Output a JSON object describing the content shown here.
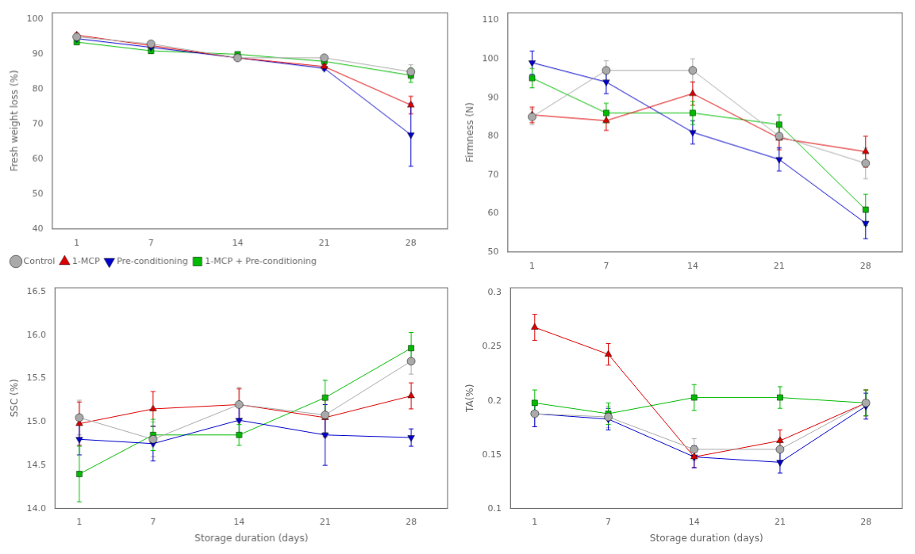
{
  "chart_data": [
    {
      "type": "line",
      "ylabel": "Fresh weight loss (%)",
      "x": [
        1,
        7,
        14,
        21,
        28
      ],
      "xlim": [
        -1,
        31
      ],
      "xticks": [
        1,
        7,
        14,
        21,
        28
      ],
      "ylim": [
        40,
        102
      ],
      "yticks": [
        40,
        50,
        60,
        70,
        80,
        90,
        100
      ],
      "grid": false,
      "legend": "lower left",
      "series": [
        {
          "name": "Control",
          "color": "#aaaaaa",
          "marker": "circle",
          "values": [
            95.0,
            93.0,
            89.0,
            89.0,
            85.0
          ],
          "yerr": [
            0.5,
            0.8,
            0.5,
            0.5,
            2.0
          ]
        },
        {
          "name": "1-MCP",
          "color": "#dd0000",
          "marker": "triangle-up",
          "values": [
            95.5,
            92.5,
            89.0,
            86.5,
            75.5
          ],
          "yerr": [
            0.5,
            0.8,
            0.5,
            0.5,
            2.5
          ]
        },
        {
          "name": "Pre-conditioning",
          "color": "#0000cc",
          "marker": "triangle-down",
          "values": [
            94.5,
            92.0,
            89.0,
            86.0,
            67.0
          ],
          "yerr": [
            0.5,
            0.8,
            0.5,
            0.5,
            9.0
          ]
        },
        {
          "name": "1-MCP + Pre-conditioning",
          "color": "#00bb00",
          "marker": "square",
          "values": [
            93.5,
            91.0,
            90.0,
            88.0,
            84.0
          ],
          "yerr": [
            0.5,
            0.8,
            0.5,
            0.5,
            2.0
          ]
        }
      ]
    },
    {
      "type": "line",
      "ylabel": "Firmness (N)",
      "x": [
        1,
        7,
        14,
        21,
        28
      ],
      "xlim": [
        -1,
        31
      ],
      "xticks": [
        1,
        7,
        14,
        21,
        28
      ],
      "ylim": [
        50,
        112
      ],
      "yticks": [
        50,
        60,
        70,
        80,
        90,
        100,
        110
      ],
      "grid": false,
      "series": [
        {
          "name": "Control",
          "color": "#aaaaaa",
          "marker": "circle",
          "values": [
            85.0,
            97.0,
            97.0,
            80.0,
            73.0
          ],
          "yerr": [
            2.0,
            2.5,
            3.0,
            3.0,
            4.0
          ]
        },
        {
          "name": "1-MCP",
          "color": "#dd0000",
          "marker": "triangle-up",
          "values": [
            85.5,
            84.0,
            91.0,
            79.5,
            76.0
          ],
          "yerr": [
            2.0,
            2.5,
            3.0,
            3.0,
            4.0
          ]
        },
        {
          "name": "Pre-conditioning",
          "color": "#0000cc",
          "marker": "triangle-down",
          "values": [
            99.0,
            94.0,
            81.0,
            74.0,
            57.5
          ],
          "yerr": [
            3.0,
            3.0,
            3.0,
            3.0,
            4.0
          ]
        },
        {
          "name": "1-MCP + Pre-conditioning",
          "color": "#00bb00",
          "marker": "square",
          "values": [
            95.0,
            86.0,
            86.0,
            83.0,
            61.0
          ],
          "yerr": [
            2.5,
            2.5,
            3.0,
            2.5,
            4.0
          ]
        }
      ]
    },
    {
      "type": "line",
      "ylabel": "SSC (%)",
      "xlabel": "Storage duration (days)",
      "x": [
        1,
        7,
        14,
        21,
        28
      ],
      "xlim": [
        -1,
        31
      ],
      "xticks": [
        1,
        7,
        14,
        21,
        28
      ],
      "ylim": [
        14.0,
        16.55
      ],
      "yticks": [
        {
          "value": 14.0,
          "label": "14.0"
        },
        14.5,
        {
          "value": 15.0,
          "label": "15.0"
        },
        15.5,
        {
          "value": 16.0,
          "label": "16.0"
        },
        16.5
      ],
      "grid": false,
      "series": [
        {
          "name": "Control",
          "color": "#aaaaaa",
          "marker": "circle",
          "values": [
            15.05,
            14.8,
            15.2,
            15.08,
            15.7
          ],
          "yerr": [
            0.2,
            0.2,
            0.2,
            0.2,
            0.15
          ]
        },
        {
          "name": "1-MCP",
          "color": "#dd0000",
          "marker": "triangle-up",
          "values": [
            14.98,
            15.15,
            15.2,
            15.05,
            15.3
          ],
          "yerr": [
            0.25,
            0.2,
            0.18,
            0.22,
            0.15
          ]
        },
        {
          "name": "Pre-conditioning",
          "color": "#0000cc",
          "marker": "triangle-down",
          "values": [
            14.8,
            14.75,
            15.02,
            14.85,
            14.82
          ],
          "yerr": [
            0.18,
            0.2,
            0.18,
            0.35,
            0.1
          ]
        },
        {
          "name": "1-MCP + Pre-conditioning",
          "color": "#00bb00",
          "marker": "square",
          "values": [
            14.4,
            14.85,
            14.85,
            15.28,
            15.85
          ],
          "yerr": [
            0.32,
            0.18,
            0.12,
            0.2,
            0.18
          ]
        }
      ]
    },
    {
      "type": "line",
      "ylabel": "TA(%)",
      "xlabel": "Storage duration (days)",
      "x": [
        1,
        7,
        14,
        21,
        28
      ],
      "xlim": [
        -1,
        31
      ],
      "xticks": [
        1,
        7,
        14,
        21,
        28
      ],
      "ylim": [
        0.1,
        0.305
      ],
      "yticks": [
        0.1,
        0.15,
        0.2,
        0.25,
        0.3
      ],
      "grid": false,
      "series": [
        {
          "name": "Control",
          "color": "#aaaaaa",
          "marker": "circle",
          "values": [
            0.188,
            0.185,
            0.155,
            0.155,
            0.198
          ],
          "yerr": [
            0.012,
            0.01,
            0.01,
            0.01,
            0.012
          ]
        },
        {
          "name": "1-MCP",
          "color": "#dd0000",
          "marker": "triangle-up",
          "values": [
            0.268,
            0.243,
            0.148,
            0.163,
            0.198
          ],
          "yerr": [
            0.012,
            0.01,
            0.01,
            0.01,
            0.012
          ]
        },
        {
          "name": "Pre-conditioning",
          "color": "#0000cc",
          "marker": "triangle-down",
          "values": [
            0.188,
            0.183,
            0.148,
            0.143,
            0.195
          ],
          "yerr": [
            0.012,
            0.01,
            0.01,
            0.01,
            0.012
          ]
        },
        {
          "name": "1-MCP + Pre-conditioning",
          "color": "#00bb00",
          "marker": "square",
          "values": [
            0.198,
            0.188,
            0.203,
            0.203,
            0.198
          ],
          "yerr": [
            0.012,
            0.01,
            0.012,
            0.01,
            0.012
          ]
        }
      ]
    }
  ]
}
